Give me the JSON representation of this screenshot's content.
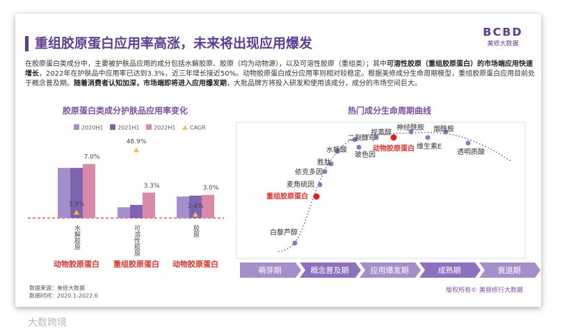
{
  "header": {
    "title": "重组胶原蛋白应用率高涨，未来将出现应用爆发",
    "logo": "BCBD",
    "logo_sub": "美修大数据"
  },
  "intro": [
    {
      "text": "在胶原蛋白类成分中，主要被护肤品应用的成分包括水解胶原、胶原（均为动物源），以及可溶性胶原（重组类）；其中",
      "bold": false
    },
    {
      "text": "可溶性胶原（重组胶原蛋白）的市场端应用快速增长",
      "bold": true
    },
    {
      "text": "，2022年在护肤品中应用率已达到3.3%，近三年增长接近50%。动物胶原蛋白成分应用率则相对较稳定。根据美修成分生命周期模型，重组胶原蛋白应用目前处于概念普及期。",
      "bold": false
    },
    {
      "text": "随着消费者认知加深，市场端即将进入应用爆发期",
      "bold": true
    },
    {
      "text": "，大批品牌方将投入研发和使用该成分，成分的市场空间巨大。",
      "bold": false
    }
  ],
  "chart_data": {
    "type": "bar",
    "title": "胶原蛋白类成分护肤品应用率变化",
    "categories": [
      "水解胶原",
      "可溶性胶原",
      "胶原"
    ],
    "category_groups": [
      "动物胶原蛋白",
      "重组胶原蛋白",
      "动物胶原蛋白"
    ],
    "series": [
      {
        "name": "2020H1",
        "color": "#a58fcb",
        "values": [
          6.5,
          1.4,
          2.8
        ]
      },
      {
        "name": "2021H1",
        "color": "#7f63b0",
        "values": [
          6.5,
          1.7,
          2.9
        ]
      },
      {
        "name": "2022H1",
        "color": "#d98aab",
        "values": [
          7.0,
          3.3,
          3.0
        ],
        "value_labels": [
          "7.0%",
          "3.3%",
          "3.0%"
        ]
      },
      {
        "name": "CAGR",
        "color": "#f2c14e",
        "axis": "y2",
        "values": [
          3.9,
          48.9,
          2.4
        ],
        "value_labels": [
          "3.9%",
          "48.9%",
          "2.4%"
        ]
      }
    ],
    "ylim": [
      0,
      9
    ],
    "y2lim": [
      0,
      50
    ]
  },
  "lifecycle": {
    "title": "热门成分生命周期曲线",
    "stages": [
      "萌芽期",
      "概念普及期",
      "应用爆发期",
      "成熟期",
      "衰退期"
    ],
    "nodes": [
      {
        "label": "白藜芦醇",
        "highlight": false
      },
      {
        "label": "重组胶原蛋白",
        "highlight": true
      },
      {
        "label": "麦角硫因",
        "highlight": false
      },
      {
        "label": "依克多因",
        "highlight": false
      },
      {
        "label": "胜肽",
        "highlight": false
      },
      {
        "label": "水杨酸",
        "highlight": false
      },
      {
        "label": "二裂酵母",
        "highlight": false
      },
      {
        "label": "玻色因",
        "highlight": false
      },
      {
        "label": "视黄醇",
        "highlight": false
      },
      {
        "label": "动物胶原蛋白",
        "highlight": true
      },
      {
        "label": "神经酰胺",
        "highlight": false
      },
      {
        "label": "维生素E",
        "highlight": false
      },
      {
        "label": "烟酰胺",
        "highlight": false
      },
      {
        "label": "透明质酸",
        "highlight": false
      }
    ]
  },
  "footer": {
    "source": "数据来源：美修大数据",
    "period": "数据时间：2020.1-2022.6",
    "copyright": "版权所有© 美丽修行大数据"
  },
  "watermark": "大数跨境"
}
